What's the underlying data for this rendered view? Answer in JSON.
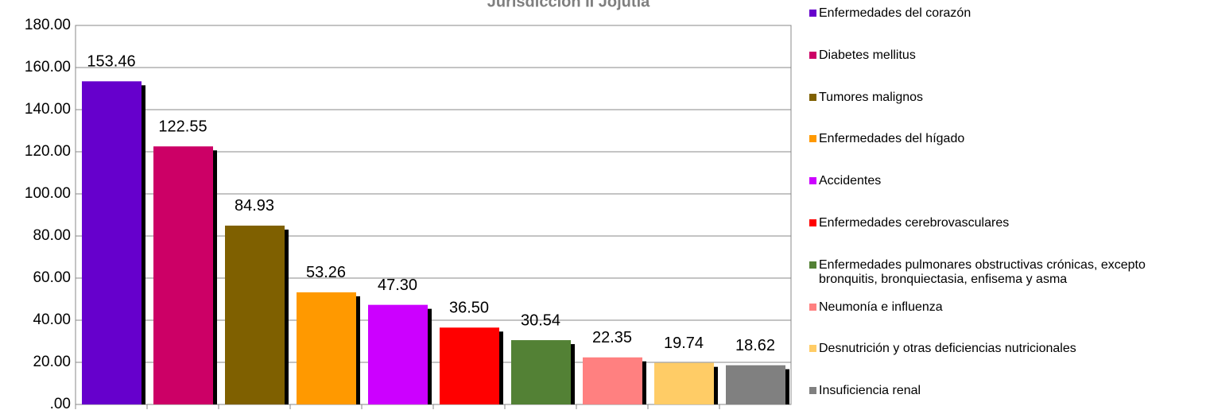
{
  "chart_data": {
    "type": "bar",
    "title": "Jurisdicción II Jojutla",
    "categories": [
      "Enfermedades del corazón",
      "Diabetes mellitus",
      "Tumores malignos",
      "Enfermedades del hígado",
      "Accidentes",
      "Enfermedades cerebrovasculares",
      "Enfermedades pulmonares obstructivas crónicas, excepto bronquitis, bronquiectasia, enfisema y asma",
      "Neumonía e influenza",
      "Desnutrición y otras deficiencias nutricionales",
      "Insuficiencia renal"
    ],
    "values": [
      153.46,
      122.55,
      84.93,
      53.26,
      47.3,
      36.5,
      30.54,
      22.35,
      19.74,
      18.62
    ],
    "value_labels": [
      "153.46",
      "122.55",
      "84.93",
      "53.26",
      "47.30",
      "36.50",
      "30.54",
      "22.35",
      "19.74",
      "18.62"
    ],
    "colors": [
      "#6600cc",
      "#cc0066",
      "#7f6000",
      "#ff9900",
      "#cc00ff",
      "#ff0000",
      "#538135",
      "#ff8080",
      "#ffcc66",
      "#808080"
    ],
    "ylim": [
      0,
      180
    ],
    "yticks": [
      {
        "value": 0,
        "label": ".00"
      },
      {
        "value": 20,
        "label": "20.00"
      },
      {
        "value": 40,
        "label": "40.00"
      },
      {
        "value": 60,
        "label": "60.00"
      },
      {
        "value": 80,
        "label": "80.00"
      },
      {
        "value": 100,
        "label": "100.00"
      },
      {
        "value": 120,
        "label": "120.00"
      },
      {
        "value": 140,
        "label": "140.00"
      },
      {
        "value": 160,
        "label": "160.00"
      },
      {
        "value": 180,
        "label": "180.00"
      }
    ],
    "grid": true,
    "legend": "right"
  }
}
